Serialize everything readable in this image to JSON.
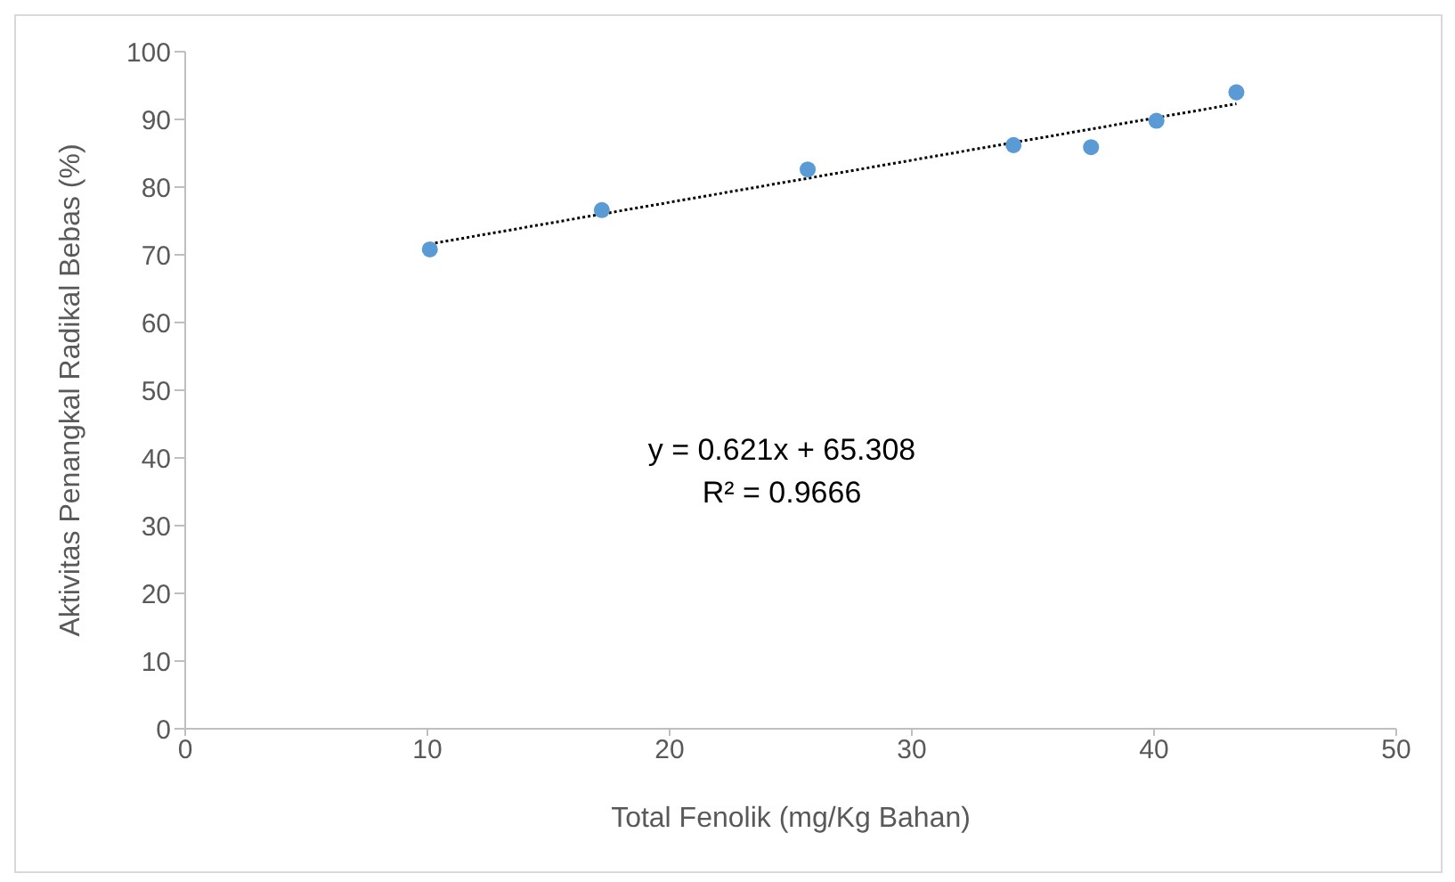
{
  "chart_data": {
    "type": "scatter",
    "xlabel": "Total Fenolik (mg/Kg Bahan)",
    "ylabel": "Aktivitas Penangkal Radikal Bebas (%)",
    "annotations": [
      "y = 0.621x + 65.308",
      "R² = 0.9666"
    ],
    "series": [
      {
        "type": "scatter",
        "color": "#5b9bd5",
        "marker": "circle",
        "x": [
          10.1,
          17.2,
          25.7,
          34.2,
          37.4,
          40.1,
          43.4
        ],
        "values": [
          70.8,
          76.6,
          82.6,
          86.2,
          85.9,
          89.8,
          94.0
        ]
      },
      {
        "type": "line",
        "color": "#000000",
        "marker": "none",
        "line_style": "dotted",
        "x": [
          10.1,
          43.4
        ],
        "values": [
          71.6,
          92.3
        ]
      }
    ],
    "xlim": [
      0,
      50
    ],
    "xticks": [
      0,
      10,
      20,
      30,
      40,
      50
    ],
    "ylim": [
      0,
      100
    ],
    "yticks": [
      0,
      10,
      20,
      30,
      40,
      50,
      60,
      70,
      80,
      90,
      100
    ],
    "grid": false,
    "legend": false
  }
}
